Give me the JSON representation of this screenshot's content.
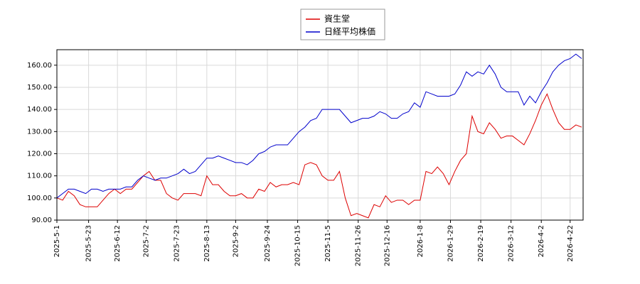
{
  "chart_data": {
    "type": "line",
    "x": [
      "2025-5-1",
      "2025-5-5",
      "2025-5-9",
      "2025-5-13",
      "2025-5-17",
      "2025-5-21",
      "2025-5-25",
      "2025-5-29",
      "2025-6-2",
      "2025-6-6",
      "2025-6-10",
      "2025-6-14",
      "2025-6-18",
      "2025-6-22",
      "2025-6-26",
      "2025-6-30",
      "2025-7-4",
      "2025-7-8",
      "2025-7-12",
      "2025-7-16",
      "2025-7-20",
      "2025-7-24",
      "2025-7-28",
      "2025-8-1",
      "2025-8-5",
      "2025-8-9",
      "2025-8-13",
      "2025-8-17",
      "2025-8-21",
      "2025-8-25",
      "2025-8-29",
      "2025-9-2",
      "2025-9-6",
      "2025-9-10",
      "2025-9-14",
      "2025-9-18",
      "2025-9-22",
      "2025-9-26",
      "2025-9-30",
      "2025-10-4",
      "2025-10-8",
      "2025-10-12",
      "2025-10-16",
      "2025-10-20",
      "2025-10-24",
      "2025-10-28",
      "2025-11-1",
      "2025-11-5",
      "2025-11-9",
      "2025-11-13",
      "2025-11-17",
      "2025-11-21",
      "2025-11-25",
      "2025-11-29",
      "2025-12-3",
      "2025-12-7",
      "2025-12-11",
      "2025-12-15",
      "2025-12-19",
      "2025-12-23",
      "2025-12-27",
      "2025-12-31",
      "2026-1-4",
      "2026-1-8",
      "2026-1-12",
      "2026-1-16",
      "2026-1-20",
      "2026-1-24",
      "2026-1-28",
      "2026-2-1",
      "2026-2-5",
      "2026-2-9",
      "2026-2-13",
      "2026-2-17",
      "2026-2-21",
      "2026-2-25",
      "2026-3-1",
      "2026-3-5",
      "2026-3-9",
      "2026-3-13",
      "2026-3-17",
      "2026-3-21",
      "2026-3-25",
      "2026-3-29",
      "2026-4-2",
      "2026-4-6",
      "2026-4-10",
      "2026-4-14",
      "2026-4-18",
      "2026-4-22",
      "2026-4-26",
      "2026-4-30"
    ],
    "series": [
      {
        "name": "資生堂",
        "color": "#dd0000",
        "values": [
          100,
          99,
          103,
          101,
          97,
          96,
          96,
          96,
          99,
          102,
          104,
          102,
          104,
          104,
          107,
          110,
          112,
          108,
          108,
          102,
          100,
          99,
          102,
          102,
          102,
          101,
          110,
          106,
          106,
          103,
          101,
          101,
          102,
          100,
          100,
          104,
          103,
          107,
          105,
          106,
          106,
          107,
          106,
          115,
          116,
          115,
          110,
          108,
          108,
          112,
          100,
          92,
          93,
          92,
          91,
          97,
          96,
          101,
          98,
          99,
          99,
          97,
          99,
          99,
          112,
          111,
          114,
          111,
          106,
          112,
          117,
          120,
          137,
          130,
          129,
          134,
          131,
          127,
          128,
          128,
          126,
          124,
          129,
          135,
          142,
          147,
          140,
          134,
          131,
          131,
          133,
          132
        ]
      },
      {
        "name": "日経平均株価",
        "color": "#0000cc",
        "values": [
          100,
          102,
          104,
          104,
          103,
          102,
          104,
          104,
          103,
          104,
          104,
          104,
          105,
          105,
          108,
          110,
          109,
          108,
          109,
          109,
          110,
          111,
          113,
          111,
          112,
          115,
          118,
          118,
          119,
          118,
          117,
          116,
          116,
          115,
          117,
          120,
          121,
          123,
          124,
          124,
          124,
          127,
          130,
          132,
          135,
          136,
          140,
          140,
          140,
          140,
          137,
          134,
          135,
          136,
          136,
          137,
          139,
          138,
          136,
          136,
          138,
          139,
          143,
          141,
          148,
          147,
          146,
          146,
          146,
          147,
          151,
          157,
          155,
          157,
          156,
          160,
          156,
          150,
          148,
          148,
          148,
          142,
          146,
          143,
          148,
          152,
          157,
          160,
          162,
          163,
          165,
          163
        ]
      }
    ],
    "xlim": [
      "2025-5-1",
      "2026-5-1"
    ],
    "xticks": [
      "2025-5-1",
      "2025-5-23",
      "2025-6-12",
      "2025-7-2",
      "2025-7-23",
      "2025-8-13",
      "2025-9-2",
      "2025-9-24",
      "2025-10-15",
      "2025-11-5",
      "2025-11-26",
      "2025-12-16",
      "2026-1-8",
      "2026-1-29",
      "2026-2-19",
      "2026-3-12",
      "2026-4-2",
      "2026-4-22"
    ],
    "ylim": [
      90,
      167
    ],
    "yticks": [
      {
        "value": 90,
        "label": "90.00"
      },
      {
        "value": 100,
        "label": "100.00"
      },
      {
        "value": 110,
        "label": "110.00"
      },
      {
        "value": 120,
        "label": "120.00"
      },
      {
        "value": 130,
        "label": "130.00"
      },
      {
        "value": 140,
        "label": "140.00"
      },
      {
        "value": 150,
        "label": "150.00"
      },
      {
        "value": 160,
        "label": "160.00"
      }
    ],
    "grid": true,
    "legend": "top"
  }
}
